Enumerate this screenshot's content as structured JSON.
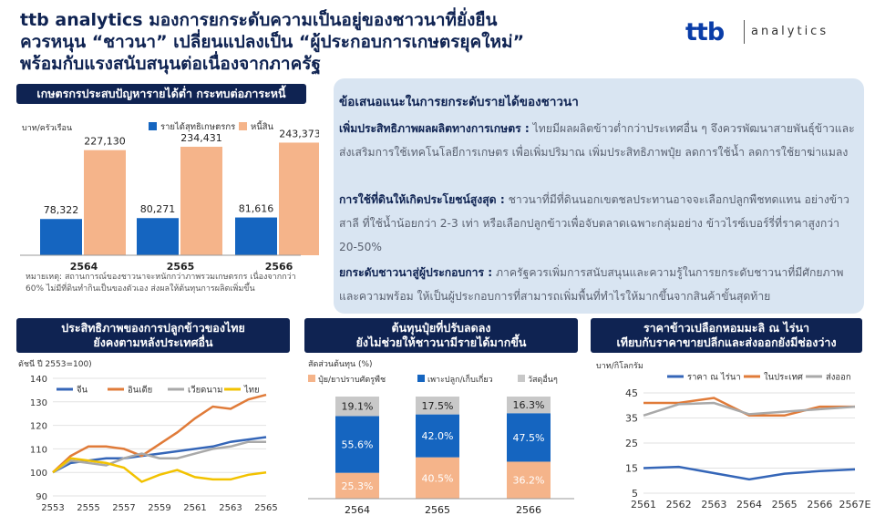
{
  "title_lines": [
    "ttb analytics มองการยกระดับความเป็นอยู่ของชาวนาที่ยั่งยืน",
    "ควรหนุน “ชาวนา” เปลี่ยนแปลงเป็น “ผู้ประกอบการเกษตรยุคใหม่”",
    "พร้อมกับแรงสนับสนุนต่อเนื่องจากภาครัฐ"
  ],
  "logo": {
    "brand": "ttb",
    "sub": "analytics"
  },
  "recommendations": {
    "title": "ข้อเสนอแนะในการยกระดับรายได้ของชาวนา",
    "items": [
      {
        "head": "เพิ่มประสิทธิภาพผลผลิตทางการเกษตร :",
        "body": " ไทยมีผลผลิตข้าวต่ำกว่าประเทศอื่น ๆ จึงควรพัฒนาสายพันธุ์ข้าวและส่งเสริมการใช้เทคโนโลยีการเกษตร เพื่อเพิ่มปริมาณ เพิ่มประสิทธิภาพปุ๋ย ลดการใช้น้ำ ลดการใช้ยาฆ่าแมลง"
      },
      {
        "head": "การใช้ที่ดินให้เกิดประโยชน์สูงสุด :",
        "body": " ชาวนาที่มีที่ดินนอกเขตชลประทานอาจจะเลือกปลูกพืชทดแทน อย่างข้าวสาลี ที่ใช้น้ำน้อยกว่า 2-3 เท่า หรือเลือกปลูกข้าวเพื่อจับตลาดเฉพาะกลุ่มอย่าง ข้าวไรซ์เบอร์รี่ที่ราคาสูงกว่า 20-50%"
      },
      {
        "head": "ยกระดับชาวนาสู่ผู้ประกอบการ :",
        "body": " ภาครัฐควรเพิ่มการสนับสนุนและความรู้ในการยกระดับชาวนาที่มีศักยภาพและความพร้อม ให้เป็นผู้ประกอบการที่สามารถเพิ่มพื้นที่ทำไรให้มากขึ้นจากสินค้าขั้นสุดท้าย"
      }
    ]
  },
  "colors": {
    "navy": "#0f2352",
    "blue": "#1565c0",
    "peach": "#f5b48a",
    "orange": "#e07b39",
    "gray": "#a9a9a9",
    "yellow": "#f2c200",
    "steel": "#3566b8"
  },
  "chart_data": [
    {
      "type": "bar",
      "header": "เกษตรกรประสบปัญหารายได้ต่ำ กระทบต่อภาระหนี้",
      "ylabel": "บาท/ครัวเรือน",
      "categories": [
        "2564",
        "2565",
        "2566"
      ],
      "series": [
        {
          "name": "รายได้สุทธิเกษตรกร",
          "values": [
            78322,
            80271,
            81616
          ],
          "labels": [
            "78,322",
            "80,271",
            "81,616"
          ],
          "color": "#1565c0"
        },
        {
          "name": "หนี้สิน",
          "values": [
            227130,
            234431,
            243373
          ],
          "labels": [
            "227,130",
            "234,431",
            "243,373"
          ],
          "color": "#f5b48a"
        }
      ],
      "ylim": [
        0,
        260000
      ],
      "legend": "top",
      "note": "หมายเหตุ: สถานการณ์ของชาวนาจะหนักกว่าภาพรวมเกษตรกร เนื่องจากกว่า 60% ไม่มีที่ดินทำกินเป็นของตัวเอง ส่งผลให้ต้นทุนการผลิตเพิ่มขึ้น"
    },
    {
      "type": "line",
      "header": [
        "ประสิทธิภาพของการปลูกข้าวของไทย",
        "ยังคงตามหลังประเทศอื่น"
      ],
      "ylabel": "ดัชนี ปี 2553=100)",
      "x": [
        2553,
        2554,
        2555,
        2556,
        2557,
        2558,
        2559,
        2560,
        2561,
        2562,
        2563,
        2564,
        2565
      ],
      "xticks": [
        "2553",
        "2555",
        "2557",
        "2559",
        "2561",
        "2563",
        "2565"
      ],
      "yticks": [
        90,
        100,
        110,
        120,
        130,
        140
      ],
      "ylim": [
        90,
        140
      ],
      "series": [
        {
          "name": "จีน",
          "values": [
            100,
            104,
            105,
            106,
            106,
            107,
            108,
            109,
            110,
            111,
            113,
            114,
            115
          ],
          "color": "#3566b8"
        },
        {
          "name": "อินเดีย",
          "values": [
            100,
            107,
            111,
            111,
            110,
            107,
            112,
            117,
            123,
            128,
            127,
            131,
            133
          ],
          "color": "#e07b39"
        },
        {
          "name": "เวียดนาม",
          "values": [
            100,
            105,
            104,
            103,
            106,
            108,
            106,
            106,
            108,
            110,
            111,
            113,
            113
          ],
          "color": "#a9a9a9"
        },
        {
          "name": "ไทย",
          "values": [
            100,
            106,
            105,
            104,
            102,
            96,
            99,
            101,
            98,
            97,
            97,
            99,
            100
          ],
          "color": "#f2c200"
        }
      ],
      "legend": "top"
    },
    {
      "type": "bar",
      "stacked": true,
      "header": [
        "ต้นทุนปุ๋ยที่ปรับลดลง",
        "ยังไม่ช่วยให้ชาวนามีรายได้มากขึ้น"
      ],
      "ylabel": "สัดส่วนต้นทุน (%)",
      "categories": [
        "2564",
        "2565",
        "2566"
      ],
      "series": [
        {
          "name": "ปุ๋ย/ยาปราบศัตรูพืช",
          "values": [
            25.3,
            40.5,
            36.2
          ],
          "labels": [
            "25.3%",
            "40.5%",
            "36.2%"
          ],
          "color": "#f5b48a"
        },
        {
          "name": "เพาะปลูก/เก็บเกี่ยว",
          "values": [
            55.6,
            42.0,
            47.5
          ],
          "labels": [
            "55.6%",
            "42.0%",
            "47.5%"
          ],
          "color": "#1565c0"
        },
        {
          "name": "วัสดุอื่นๆ",
          "values": [
            19.1,
            17.5,
            16.3
          ],
          "labels": [
            "19.1%",
            "17.5%",
            "16.3%"
          ],
          "color": "#c8c8c8"
        }
      ],
      "ylim": [
        0,
        100
      ],
      "legend": "top"
    },
    {
      "type": "line",
      "header": [
        "ราคาข้าวเปลือกหอมมะลิ ณ ไร่นา",
        "เทียบกับราคาขายปลีกและส่งออกยังมีช่องว่าง"
      ],
      "ylabel": "บาท/กิโลกรัม",
      "x": [
        "2561",
        "2562",
        "2563",
        "2564",
        "2565",
        "2566",
        "2567E"
      ],
      "yticks": [
        5,
        15,
        25,
        35,
        45
      ],
      "ylim": [
        5,
        45
      ],
      "series": [
        {
          "name": "ราคา ณ ไร่นา",
          "values": [
            15,
            15.5,
            13,
            10.5,
            12.8,
            13.8,
            14.5
          ],
          "color": "#3566b8"
        },
        {
          "name": "ในประเทศ",
          "values": [
            41,
            41,
            43,
            36,
            36,
            39.5,
            39.5
          ],
          "color": "#e07b39"
        },
        {
          "name": "ส่งออก",
          "values": [
            36,
            40.5,
            41,
            36.5,
            37.5,
            38.5,
            39.5
          ],
          "color": "#a9a9a9"
        }
      ],
      "legend": "top"
    }
  ]
}
